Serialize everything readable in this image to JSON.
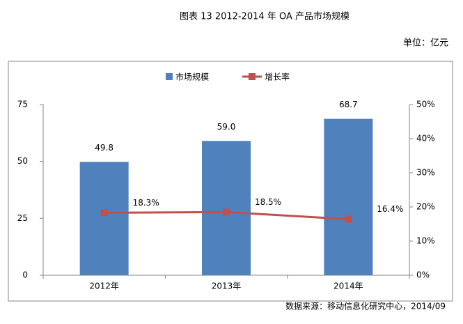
{
  "chart_data": {
    "type": "bar",
    "title": "图表 13 2012-2014 年 OA 产品市场规模",
    "subtitle": "单位：亿元",
    "source": "数据来源：移动信息化研究中心，2014/09",
    "categories": [
      "2012年",
      "2013年",
      "2014年"
    ],
    "series": [
      {
        "name": "市场规模",
        "type": "bar",
        "color": "#4f81bd",
        "values": [
          49.8,
          59.0,
          68.7
        ],
        "value_labels": [
          "49.8",
          "59.0",
          "68.7"
        ]
      },
      {
        "name": "增长率",
        "type": "line",
        "axis": "y2",
        "color": "#c0504d",
        "values": [
          18.3,
          18.5,
          16.4
        ],
        "value_labels": [
          "18.3%",
          "18.5%",
          "16.4%"
        ]
      }
    ],
    "ylim": [
      0,
      75
    ],
    "yticks": [
      0,
      25,
      50,
      75
    ],
    "y2lim": [
      0,
      50
    ],
    "y2ticks": [
      {
        "value": 0,
        "label": "0%"
      },
      {
        "value": 10,
        "label": "10%"
      },
      {
        "value": 20,
        "label": "20%"
      },
      {
        "value": 30,
        "label": "30%"
      },
      {
        "value": 40,
        "label": "40%"
      },
      {
        "value": 50,
        "label": "50%"
      }
    ],
    "legend": "top",
    "grid": false
  }
}
